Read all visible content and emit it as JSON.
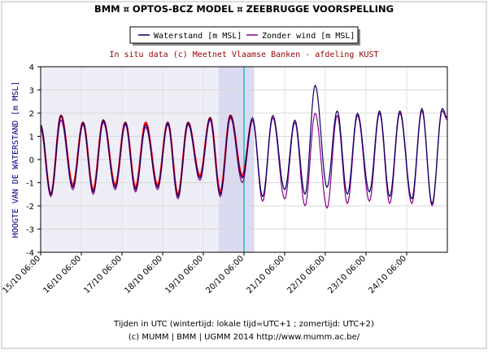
{
  "header": {
    "title": "BMM ¤ OPTOS-BCZ MODEL ¤ ZEEBRUGGE VOORSPELLING",
    "subtitle": "In situ data (c) Meetnet Vlaamse Banken - afdeling KUST"
  },
  "footer": {
    "xlabel": "Tijden in UTC (wintertijd: lokale tijd=UTC+1 ; zomertijd: UTC+2)",
    "credits": "(c) MUMM | BMM | UGMM 2014 http://www.mumm.ac.be/"
  },
  "colors": {
    "waterstand": "#0a0060",
    "zonder_wind": "#8a0090",
    "insitu": "#ff0000",
    "title": "#000000",
    "subtitle": "#990000",
    "band_history": "#eeeef6",
    "band_recent": "#dadaf0",
    "now_line": "#22bbbb"
  },
  "chart_data": {
    "type": "line",
    "title": "BMM ¤ OPTOS-BCZ MODEL ¤ ZEEBRUGGE VOORSPELLING",
    "subtitle": "In situ data (c) Meetnet Vlaamse Banken - afdeling KUST",
    "xlabel": "Tijden in UTC (wintertijd: lokale tijd=UTC+1 ; zomertijd: UTC+2)",
    "ylabel": "HOOGTE VAN DE WATERSTAND [m MSL]",
    "xlim": [
      "15/10 06:00",
      "25/10 06:00"
    ],
    "ylim": [
      -4,
      4
    ],
    "grid": true,
    "legend_position": "top-center",
    "x_ticks": [
      "15/10 06:00",
      "16/10 06:00",
      "17/10 06:00",
      "18/10 06:00",
      "19/10 06:00",
      "20/10 06:00",
      "21/10 06:00",
      "22/10 06:00",
      "23/10 06:00",
      "24/10 06:00"
    ],
    "y_ticks": [
      "-4",
      "-3",
      "-2",
      "-1",
      "0",
      "1",
      "2",
      "3",
      "4"
    ],
    "shaded_periods": [
      {
        "from": "15/10 06:00",
        "to": "19/10 15:00"
      },
      {
        "from": "19/10 15:00",
        "to": "20/10 12:00"
      }
    ],
    "current_time": "20/10 06:00",
    "tide_extremes_x": [
      "15/10 06:00",
      "15/10 12:00",
      "15/10 18:00",
      "16/10 01:00",
      "16/10 07:00",
      "16/10 13:00",
      "16/10 19:00",
      "17/10 02:00",
      "17/10 08:00",
      "17/10 14:00",
      "17/10 20:00",
      "18/10 03:00",
      "18/10 09:00",
      "18/10 15:00",
      "18/10 21:00",
      "19/10 04:00",
      "19/10 10:00",
      "19/10 16:00",
      "19/10 22:00",
      "20/10 05:00",
      "20/10 11:00",
      "20/10 17:00",
      "20/10 23:00",
      "21/10 06:00",
      "21/10 12:00",
      "21/10 18:00",
      "22/10 00:00",
      "22/10 07:00",
      "22/10 13:00",
      "22/10 19:00",
      "23/10 01:00",
      "23/10 08:00",
      "23/10 14:00",
      "23/10 20:00",
      "24/10 02:00",
      "24/10 09:00",
      "24/10 15:00",
      "24/10 21:00",
      "25/10 03:00",
      "25/10 06:00"
    ],
    "series": [
      {
        "name": "Waterstand [m MSL]",
        "y": [
          1.5,
          -1.5,
          1.9,
          -1.2,
          1.6,
          -1.4,
          1.7,
          -1.2,
          1.6,
          -1.3,
          1.5,
          -1.2,
          1.6,
          -1.6,
          1.6,
          -0.8,
          1.8,
          -1.5,
          1.9,
          -0.8,
          1.8,
          -1.6,
          1.9,
          -1.3,
          1.7,
          -1.5,
          3.2,
          -1.2,
          2.1,
          -1.5,
          2.0,
          -1.4,
          2.1,
          -1.6,
          2.1,
          -1.7,
          2.2,
          -1.9,
          2.2,
          1.8
        ]
      },
      {
        "name": "Zonder wind [m MSL]",
        "y": [
          1.3,
          -1.6,
          1.7,
          -1.3,
          1.5,
          -1.5,
          1.6,
          -1.3,
          1.5,
          -1.4,
          1.4,
          -1.3,
          1.5,
          -1.7,
          1.5,
          -0.9,
          1.7,
          -1.6,
          1.8,
          -1.0,
          1.7,
          -1.8,
          1.8,
          -1.7,
          1.6,
          -2.0,
          2.0,
          -2.1,
          1.9,
          -1.9,
          1.9,
          -1.8,
          2.0,
          -1.9,
          2.0,
          -1.9,
          2.1,
          -2.0,
          2.1,
          1.7
        ]
      },
      {
        "name": "In situ",
        "y": [
          1.4,
          -1.5,
          1.9,
          -1.1,
          1.6,
          -1.3,
          1.7,
          -1.1,
          1.6,
          -1.2,
          1.6,
          -1.1,
          1.6,
          -1.5,
          1.6,
          -0.7,
          1.8,
          -1.4,
          1.9,
          -0.7,
          1.7
        ]
      }
    ]
  }
}
